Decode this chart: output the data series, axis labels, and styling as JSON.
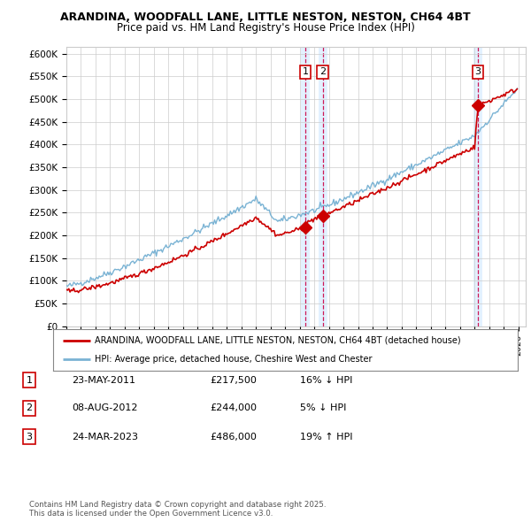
{
  "title_line1": "ARANDINA, WOODFALL LANE, LITTLE NESTON, NESTON, CH64 4BT",
  "title_line2": "Price paid vs. HM Land Registry's House Price Index (HPI)",
  "ylabel_ticks": [
    "£0",
    "£50K",
    "£100K",
    "£150K",
    "£200K",
    "£250K",
    "£300K",
    "£350K",
    "£400K",
    "£450K",
    "£500K",
    "£550K",
    "£600K"
  ],
  "ytick_values": [
    0,
    50000,
    100000,
    150000,
    200000,
    250000,
    300000,
    350000,
    400000,
    450000,
    500000,
    550000,
    600000
  ],
  "x_start_year": 1995,
  "x_end_year": 2026,
  "hpi_color": "#7ab3d4",
  "price_color": "#cc0000",
  "marker_color": "#cc0000",
  "sale_year_vals": [
    2011.38,
    2012.58,
    2023.23
  ],
  "sale_prices": [
    217500,
    244000,
    486000
  ],
  "sale_labels": [
    "1",
    "2",
    "3"
  ],
  "legend_property": "ARANDINA, WOODFALL LANE, LITTLE NESTON, NESTON, CH64 4BT (detached house)",
  "legend_hpi": "HPI: Average price, detached house, Cheshire West and Chester",
  "table_entries": [
    [
      "1",
      "23-MAY-2011",
      "£217,500",
      "16% ↓ HPI"
    ],
    [
      "2",
      "08-AUG-2012",
      "£244,000",
      "5% ↓ HPI"
    ],
    [
      "3",
      "24-MAR-2023",
      "£486,000",
      "19% ↑ HPI"
    ]
  ],
  "footnote": "Contains HM Land Registry data © Crown copyright and database right 2025.\nThis data is licensed under the Open Government Licence v3.0.",
  "background_color": "#ffffff",
  "grid_color": "#cccccc",
  "vline_color": "#cc0044",
  "vband_color": "#ddeeff",
  "label_border_color": "#cc0000"
}
